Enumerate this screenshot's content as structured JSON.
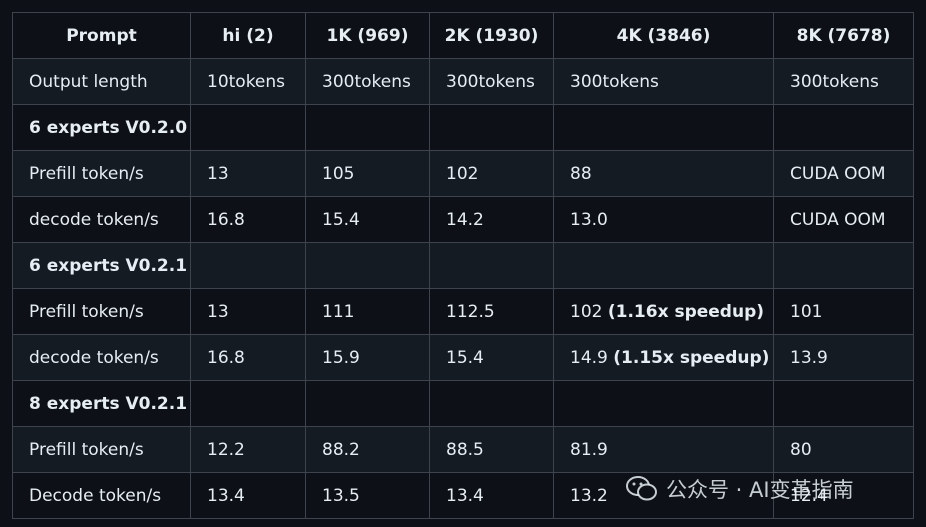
{
  "table": {
    "header": [
      "Prompt",
      "hi (2)",
      "1K (969)",
      "2K (1930)",
      "4K (3846)",
      "8K (7678)"
    ],
    "rows": [
      {
        "cells": [
          "Output length",
          "10tokens",
          "300tokens",
          "300tokens",
          "300tokens",
          "300tokens"
        ]
      },
      {
        "section": "6 experts V0.2.0"
      },
      {
        "cells": [
          "Prefill token/s",
          "13",
          "105",
          "102",
          "88",
          "CUDA OOM"
        ]
      },
      {
        "cells": [
          "decode token/s",
          "16.8",
          "15.4",
          "14.2",
          "13.0",
          "CUDA OOM"
        ]
      },
      {
        "section": "6 experts V0.2.1"
      },
      {
        "cells": [
          "Prefill token/s",
          "13",
          "111",
          "112.5",
          {
            "text": "102",
            "note": "(1.16x speedup)"
          },
          "101"
        ]
      },
      {
        "cells": [
          "decode token/s",
          "16.8",
          "15.9",
          "15.4",
          {
            "text": "14.9",
            "note": "(1.15x speedup)"
          },
          "13.9"
        ]
      },
      {
        "section": "8 experts V0.2.1"
      },
      {
        "cells": [
          "Prefill token/s",
          "12.2",
          "88.2",
          "88.5",
          "81.9",
          "80"
        ]
      },
      {
        "cells": [
          "Decode token/s",
          "13.4",
          "13.5",
          "13.4",
          "13.2",
          "12.4"
        ]
      }
    ]
  },
  "watermark": "公众号 · AI变革指南"
}
